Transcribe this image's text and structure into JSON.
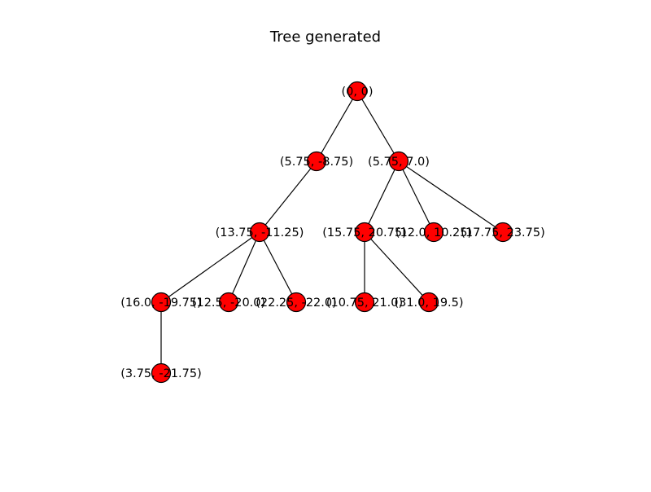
{
  "title": "Tree generated",
  "node_color": "#ff0000",
  "edge_color": "#000000",
  "nodes": [
    {
      "id": "n0",
      "label": "(0, 0)"
    },
    {
      "id": "n1",
      "label": "(5.75, -8.75)"
    },
    {
      "id": "n2",
      "label": "(5.75, 7.0)"
    },
    {
      "id": "n3",
      "label": "(13.75, -11.25)"
    },
    {
      "id": "n4",
      "label": "(15.75, 20.75)"
    },
    {
      "id": "n5",
      "label": "(12.0, 10.25)"
    },
    {
      "id": "n6",
      "label": "(17.75, 23.75)"
    },
    {
      "id": "n7",
      "label": "(16.0, -19.75)"
    },
    {
      "id": "n8",
      "label": "(12.5, -20.0)"
    },
    {
      "id": "n9",
      "label": "(22.25, -22.0)"
    },
    {
      "id": "n10",
      "label": "(10.75, 21.0)"
    },
    {
      "id": "n11",
      "label": "(31.0, 19.5)"
    },
    {
      "id": "n12",
      "label": "(3.75, -21.75)"
    }
  ],
  "edges": [
    [
      "n0",
      "n1"
    ],
    [
      "n0",
      "n2"
    ],
    [
      "n1",
      "n3"
    ],
    [
      "n2",
      "n4"
    ],
    [
      "n2",
      "n5"
    ],
    [
      "n2",
      "n6"
    ],
    [
      "n3",
      "n7"
    ],
    [
      "n3",
      "n8"
    ],
    [
      "n3",
      "n9"
    ],
    [
      "n4",
      "n10"
    ],
    [
      "n4",
      "n11"
    ],
    [
      "n7",
      "n12"
    ]
  ]
}
